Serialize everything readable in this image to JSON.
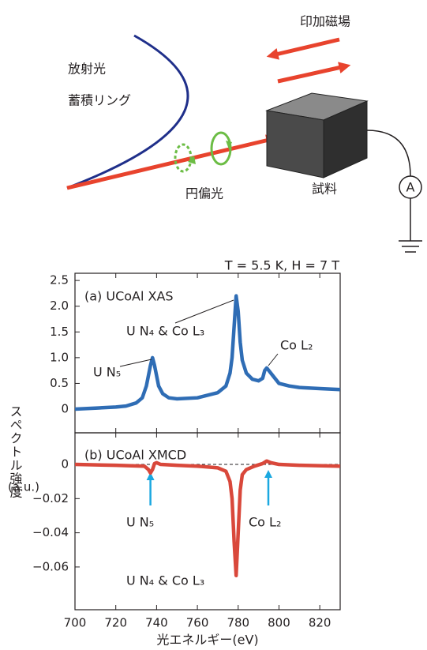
{
  "diagram": {
    "field": "印加磁場",
    "ring1": "放射光",
    "ring2": "蓄積リング",
    "polar": "円偏光",
    "sample": "試料",
    "meter": "A"
  },
  "chart_data": [
    {
      "type": "line",
      "title": "T = 5.5 K, H = 7 T",
      "panel": "(a) UCoAl XAS",
      "ylabel": "スペクトル強度",
      "yunit": "(a.u.)",
      "x": [
        700,
        710,
        720,
        725,
        730,
        733,
        735,
        737,
        738,
        739,
        741,
        743,
        746,
        750,
        760,
        770,
        774,
        776,
        777,
        778,
        779,
        780,
        781,
        782,
        784,
        787,
        790,
        792,
        793,
        794,
        795,
        797,
        800,
        805,
        810,
        820,
        830
      ],
      "values": [
        0,
        0.02,
        0.04,
        0.06,
        0.12,
        0.22,
        0.45,
        0.85,
        1.0,
        0.85,
        0.45,
        0.3,
        0.22,
        0.2,
        0.22,
        0.32,
        0.45,
        0.7,
        1.0,
        1.6,
        2.2,
        1.9,
        1.3,
        0.95,
        0.7,
        0.58,
        0.55,
        0.6,
        0.75,
        0.8,
        0.75,
        0.65,
        0.5,
        0.45,
        0.42,
        0.4,
        0.38
      ],
      "color": "#2f6db5",
      "xlim": [
        700,
        830
      ],
      "ylim": [
        -0.46,
        2.64
      ],
      "yticks": [
        0,
        0.5,
        {
          "value": 1,
          "label": "1.0"
        },
        1.5,
        {
          "value": 2,
          "label": "2.0"
        },
        2.5
      ],
      "annotations": [
        "U N₅",
        "U N₄ & Co L₃",
        "Co L₂"
      ]
    },
    {
      "type": "line",
      "panel": "(b) UCoAl XMCD",
      "xlabel": "光エネルギー(eV)",
      "x": [
        700,
        720,
        734,
        736,
        737,
        738,
        739,
        740,
        742,
        750,
        760,
        770,
        774,
        776,
        777,
        778,
        779,
        780,
        781,
        782,
        784,
        788,
        792,
        794,
        796,
        800,
        810,
        830
      ],
      "values": [
        0,
        -0.0005,
        -0.001,
        -0.003,
        -0.005,
        -0.003,
        0.0005,
        0.001,
        0,
        -0.0005,
        -0.001,
        -0.002,
        -0.004,
        -0.01,
        -0.02,
        -0.045,
        -0.065,
        -0.04,
        -0.015,
        -0.006,
        -0.003,
        -0.001,
        0.0005,
        0.002,
        0.001,
        0,
        -0.0005,
        -0.001
      ],
      "color": "#d9483b",
      "xlim": [
        700,
        830
      ],
      "ylim": [
        -0.085,
        0.0185
      ],
      "xticks": [
        700,
        720,
        740,
        760,
        780,
        800,
        820
      ],
      "yticks": [
        0,
        {
          "value": -0.02,
          "label": "−0.02"
        },
        {
          "value": -0.04,
          "label": "−0.04"
        },
        {
          "value": -0.06,
          "label": "−0.06"
        }
      ],
      "annotations": [
        "U N₅",
        "Co L₂",
        "U N₄ & Co L₃"
      ]
    }
  ]
}
